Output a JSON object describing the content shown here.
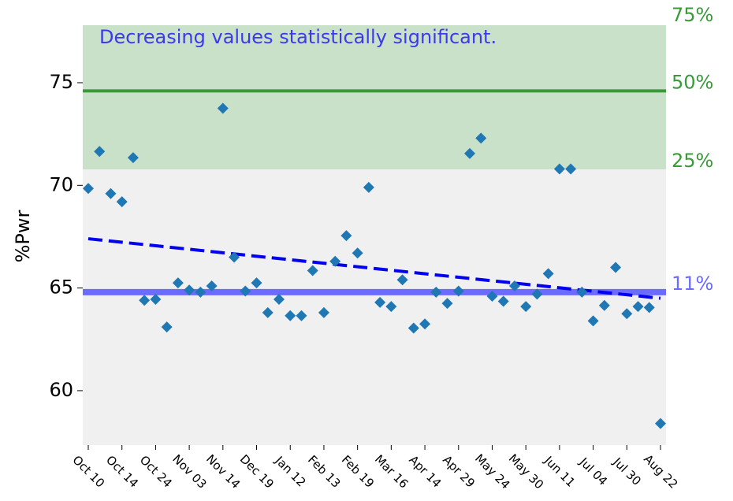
{
  "chart_data": {
    "type": "scatter",
    "y_label": "%Pwr",
    "annotation": "Decreasing values statistically significant.",
    "categories": [
      "Oct 10",
      null,
      null,
      "Oct 14",
      null,
      null,
      "Oct 24",
      null,
      null,
      "Nov 03",
      null,
      null,
      "Nov 14",
      null,
      null,
      "Dec 19",
      null,
      null,
      "Jan 12",
      null,
      null,
      "Feb 13",
      null,
      null,
      "Feb 19",
      null,
      null,
      "Mar 16",
      null,
      null,
      "Apr 14",
      null,
      null,
      "Apr 29",
      null,
      null,
      "May 24",
      null,
      null,
      "May 30",
      null,
      null,
      "Jun 11",
      null,
      null,
      "Jul 04",
      null,
      null,
      "Jul 30",
      null,
      null,
      "Aug 22"
    ],
    "values": [
      69.85,
      71.65,
      69.6,
      69.2,
      71.35,
      64.4,
      64.45,
      63.1,
      65.25,
      64.9,
      64.8,
      65.1,
      73.75,
      66.5,
      64.85,
      65.25,
      63.8,
      64.45,
      63.65,
      63.65,
      65.85,
      63.8,
      66.3,
      67.55,
      66.7,
      69.9,
      64.3,
      64.1,
      65.4,
      63.05,
      63.25,
      64.8,
      64.25,
      64.85,
      71.55,
      72.3,
      64.6,
      64.35,
      65.1,
      64.1,
      64.7,
      65.7,
      70.8,
      70.8,
      64.8,
      63.4,
      64.15,
      66.0,
      63.75,
      64.1,
      64.05,
      58.4
    ],
    "color": "#1f77b4",
    "ylim": [
      57.35,
      77.8
    ],
    "yticks": [
      60,
      65,
      70,
      75
    ],
    "trend": {
      "start": 67.4,
      "end": 64.5,
      "color": "#0000ee"
    },
    "percentiles": [
      {
        "label": "75%",
        "level": 77.8,
        "color": "#3a9a3a"
      },
      {
        "label": "50%",
        "level": 74.6,
        "color": "#3a9a3a"
      },
      {
        "label": "25%",
        "level": 70.78,
        "color": "#3a9a3a"
      },
      {
        "label": "11%",
        "level": 64.8,
        "color": "#6b6bff"
      }
    ],
    "band_color": "#c9e0c9",
    "background": "#f0f0f0",
    "annotation_color": "#3a3aee"
  }
}
